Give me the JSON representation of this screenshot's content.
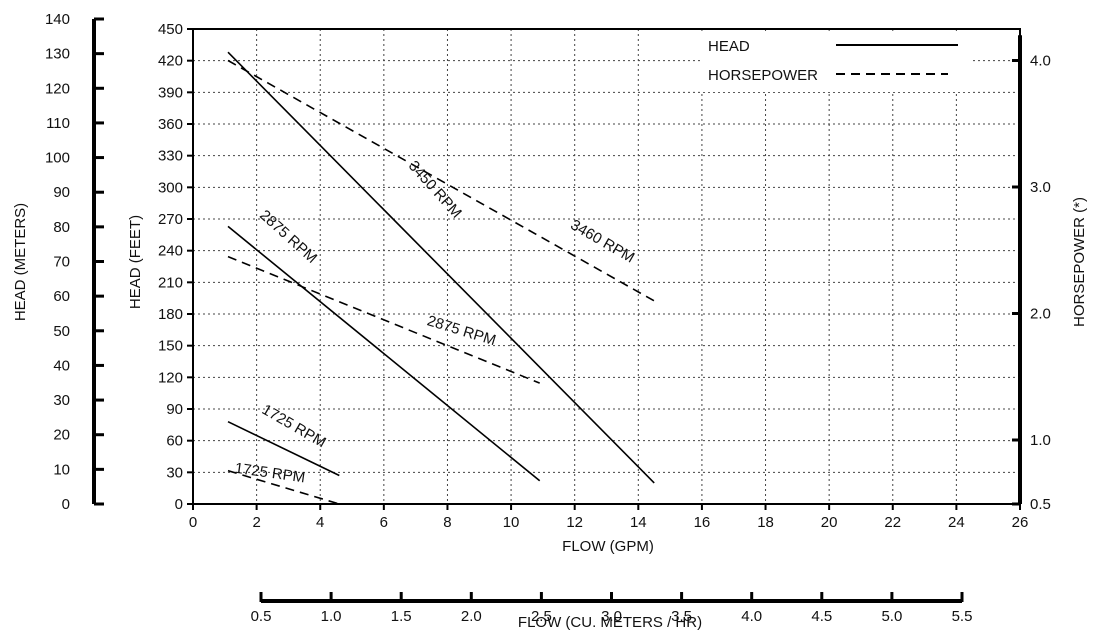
{
  "chart_data": {
    "type": "line",
    "xlabel": "FLOW   (GPM)",
    "ylabel": "HEAD  (FEET)",
    "ylabel_meters": "HEAD  (METERS)",
    "ylabel_right": "HORSEPOWER (*)",
    "xlabel_metric": "FLOW  (CU.  METERS / HR)",
    "xlim": [
      0,
      26
    ],
    "ylim": [
      0,
      450
    ],
    "hp_lim": [
      0.5,
      4.2
    ],
    "metric_lim": [
      0.5,
      5.5
    ],
    "meters_lim": [
      0,
      140
    ],
    "x_ticks": [
      "0",
      "2",
      "4",
      "6",
      "8",
      "10",
      "12",
      "14",
      "16",
      "18",
      "20",
      "22",
      "24",
      "26"
    ],
    "y_ticks": [
      "0",
      "30",
      "60",
      "90",
      "120",
      "150",
      "180",
      "210",
      "240",
      "270",
      "300",
      "330",
      "360",
      "390",
      "420",
      "450"
    ],
    "meters_ticks": [
      "0",
      "10",
      "20",
      "30",
      "40",
      "50",
      "60",
      "70",
      "80",
      "90",
      "100",
      "110",
      "120",
      "130",
      "140"
    ],
    "hp_ticks": [
      "0.5",
      "1.0",
      "2.0",
      "3.0",
      "4.0"
    ],
    "metric_ticks": [
      "0.5",
      "1.0",
      "1.5",
      "2.0",
      "2.5",
      "3.0",
      "3.5",
      "4.0",
      "4.5",
      "5.0",
      "5.5"
    ],
    "grid": true,
    "legend_position": "top-right",
    "legend": [
      {
        "label": "HEAD",
        "style": "solid"
      },
      {
        "label": "HORSEPOWER",
        "style": "dashed"
      }
    ],
    "series": [
      {
        "name": "3450 RPM",
        "kind": "head",
        "axis": "feet",
        "x": [
          1.1,
          14.5
        ],
        "y": [
          428,
          20
        ]
      },
      {
        "name": "2875 RPM",
        "kind": "head",
        "axis": "feet",
        "x": [
          1.1,
          10.9
        ],
        "y": [
          263,
          22
        ]
      },
      {
        "name": "1725 RPM",
        "kind": "head",
        "axis": "feet",
        "x": [
          1.1,
          4.6
        ],
        "y": [
          78,
          27
        ]
      },
      {
        "name": "3450 RPM",
        "kind": "horsepower",
        "axis": "hp",
        "x": [
          1.1,
          14.5
        ],
        "y": [
          4.0,
          2.1
        ]
      },
      {
        "name": "2875 RPM",
        "kind": "horsepower",
        "axis": "hp",
        "x": [
          1.1,
          10.9
        ],
        "y": [
          2.45,
          1.45
        ]
      },
      {
        "name": "1725 RPM",
        "kind": "horsepower",
        "axis": "hp",
        "x": [
          1.1,
          4.6
        ],
        "y": [
          0.76,
          0.5
        ]
      }
    ],
    "annotations": [
      {
        "text": "3450 RPM",
        "x": 7.5,
        "y": 295,
        "angle": 48
      },
      {
        "text": "3460 RPM",
        "x": 12.8,
        "y": 245,
        "angle": 30
      },
      {
        "text": "2875 RPM",
        "x": 2.9,
        "y": 250,
        "angle": 42
      },
      {
        "text": "2875 RPM",
        "x": 8.4,
        "y": 160,
        "angle": 17
      },
      {
        "text": "1725 RPM",
        "x": 3.1,
        "y": 70,
        "angle": 30
      },
      {
        "text": "1725 RPM",
        "x": 2.4,
        "y": 25,
        "angle": 8
      }
    ]
  }
}
